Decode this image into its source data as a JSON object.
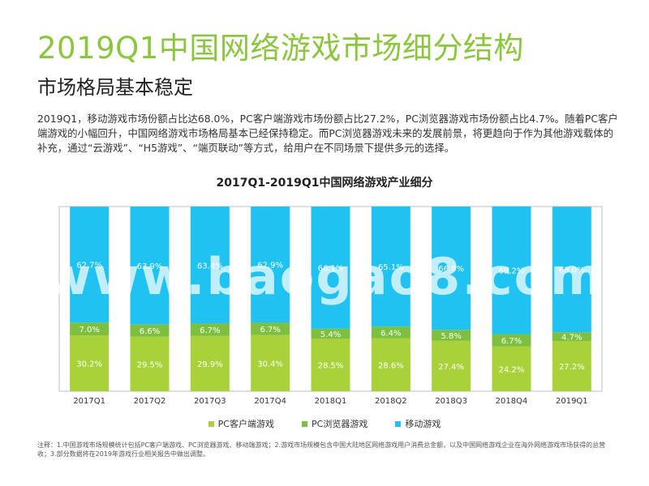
{
  "page": {
    "title": "2019Q1中国网络游戏市场细分结构",
    "subtitle": "市场格局基本稳定",
    "intro": "2019Q1，移动游戏市场份额占比达68.0%，PC客户端游戏市场份额占比27.2%，PC浏览器游戏市场份额占比4.7%。随着PC客户端游戏的小幅回升，中国网络游戏市场格局基本已经保持稳定。而PC浏览器游戏未来的发展前景，将更趋向于作为其他游戏载体的补充，通过“云游戏”、“H5游戏”、“端页联动”等方式，给用户在不同场景下提供多元的选择。",
    "note": "注释：1.中国游戏市场规模统计包括PC客户端游戏、PC浏览器游戏、移动端游戏；2.游戏市场规模包含中国大陆地区网络游戏用户消费总金额，以及中国网络游戏企业在海外网络游戏市场获得的总营收；3.部分数据将在2019年游戏行业相关报告中做出调整。",
    "watermark": "www.baogao8.com"
  },
  "chart_data": {
    "type": "bar",
    "stacked": true,
    "title": "2017Q1-2019Q1中国网络游戏产业细分",
    "categories": [
      "2017Q1",
      "2017Q2",
      "2017Q3",
      "2017Q4",
      "2018Q1",
      "2018Q2",
      "2018Q3",
      "2018Q4",
      "2019Q1"
    ],
    "ylim": [
      0,
      100
    ],
    "legend_position": "bottom",
    "series": [
      {
        "name": "PC客户端游戏",
        "color": "#a8d13a",
        "values": [
          30.2,
          29.5,
          29.9,
          30.4,
          28.5,
          28.6,
          27.4,
          24.2,
          27.2
        ],
        "labels": [
          "30.2%",
          "29.5%",
          "29.9%",
          "30.4%",
          "28.5%",
          "28.6%",
          "27.4%",
          "24.2%",
          "27.2%"
        ]
      },
      {
        "name": "PC浏览器游戏",
        "color": "#7dbf3f",
        "values": [
          7.0,
          6.6,
          6.7,
          6.7,
          5.4,
          6.4,
          5.8,
          6.7,
          4.7
        ],
        "labels": [
          "7.0%",
          "6.6%",
          "6.7%",
          "6.7%",
          "5.4%",
          "6.4%",
          "5.8%",
          "6.7%",
          "4.7%"
        ]
      },
      {
        "name": "移动游戏",
        "color": "#1fc2f0",
        "values": [
          62.7,
          63.9,
          63.4,
          62.9,
          66.1,
          65.1,
          66.8,
          69.2,
          68.0
        ],
        "labels": [
          "62.7%",
          "63.9%",
          "63.4%",
          "62.9%",
          "66.1%",
          "65.1%",
          "66.8%",
          "69.2%",
          "68.0%"
        ]
      }
    ]
  }
}
